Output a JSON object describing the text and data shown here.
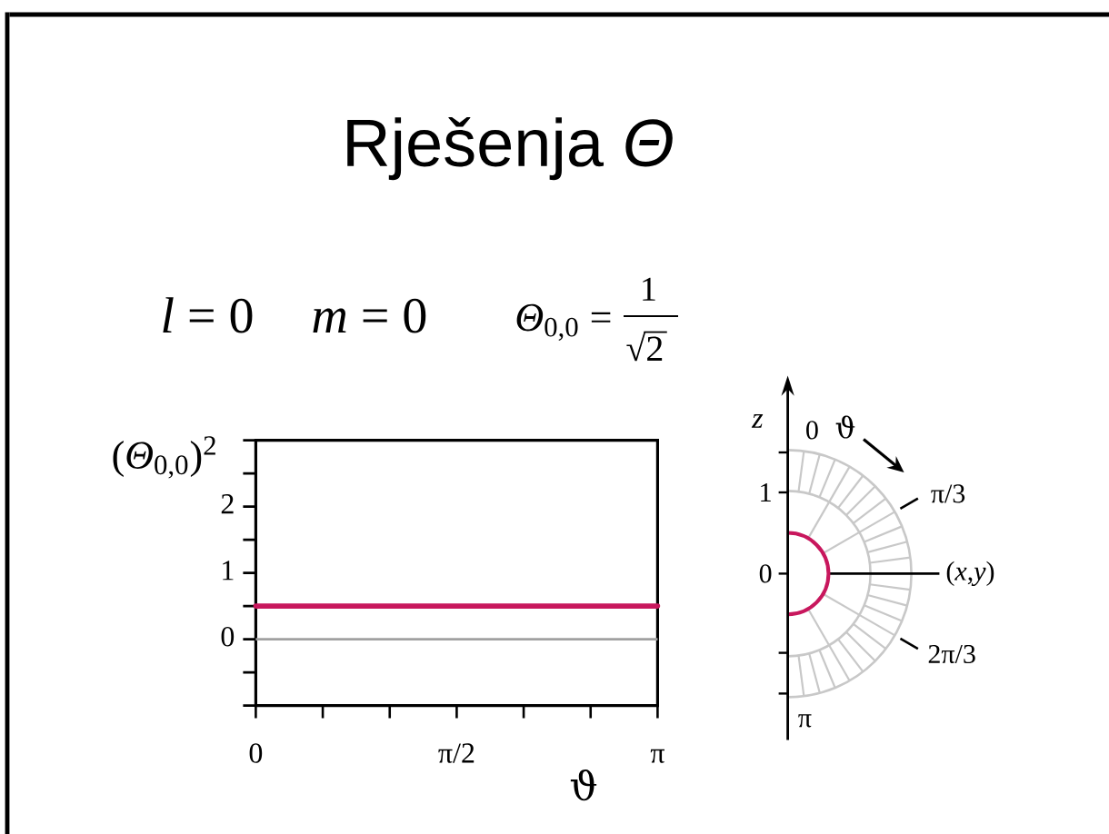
{
  "chart_data": {
    "type": "line",
    "title": "Rješenja *Θ*",
    "xlabel": "ϑ",
    "ylabel": "(*Θ*$_{0,0}$)$^{2}$",
    "annotations": [
      "*l* = 0",
      "*m* = 0",
      "*Θ*$_{0,0}$ =",
      "1",
      "√2",
      "*z*",
      "0",
      "ϑ",
      "1",
      "π/3",
      "0",
      "(*x*,*y*)",
      "2π/3",
      "π"
    ],
    "x": [
      0,
      3.1416
    ],
    "values": [
      0.5,
      0.5
    ],
    "color": "#c8175d",
    "xlim": [
      0,
      3.1416
    ],
    "ylim": [
      -1,
      3
    ],
    "xticks": [
      0,
      {
        "value": 0.5236,
        "label": null
      },
      {
        "value": 1.0472,
        "label": null
      },
      {
        "value": 1.5708,
        "label": "π/2"
      },
      {
        "value": 2.0944,
        "label": null
      },
      {
        "value": 2.618,
        "label": null
      },
      {
        "value": 3.1416,
        "label": "π"
      }
    ],
    "yticks": [
      {
        "value": -1,
        "label": null
      },
      {
        "value": -0.5,
        "label": null
      },
      0,
      {
        "value": 0.5,
        "label": null
      },
      1,
      {
        "value": 1.5,
        "label": null
      },
      2,
      {
        "value": 2.5,
        "label": null
      },
      {
        "value": 3,
        "label": null
      }
    ],
    "ref_lines": [
      {
        "axis": "y",
        "value": 0,
        "color": "#a0a0a0"
      }
    ]
  }
}
